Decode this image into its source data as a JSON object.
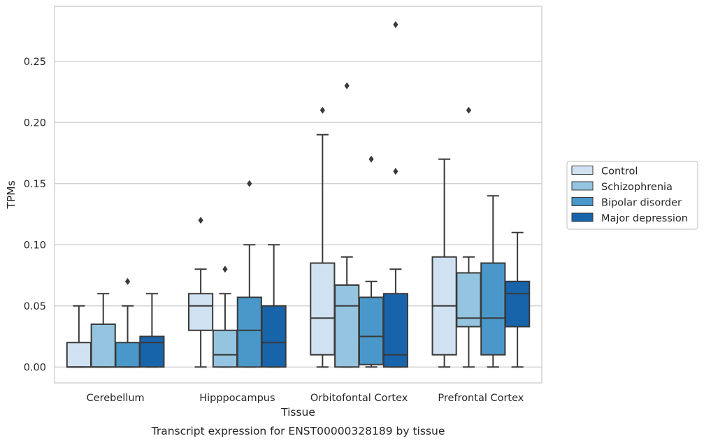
{
  "chart_data": {
    "type": "box",
    "xlabel": "Tissue",
    "ylabel": "TPMs",
    "caption": "Transcript expression for ENST00000328189 by tissue",
    "ylim": [
      -0.013,
      0.295
    ],
    "yticks": [
      0.0,
      0.05,
      0.1,
      0.15,
      0.2,
      0.25
    ],
    "ytick_labels": [
      "0.00",
      "0.05",
      "0.10",
      "0.15",
      "0.20",
      "0.25"
    ],
    "grid": "horizontal",
    "legend_position": "right",
    "categories": [
      "Cerebellum",
      "Hipppocampus",
      "Orbitofontal Cortex",
      "Prefrontal Cortex"
    ],
    "series": [
      {
        "name": "Control",
        "color": "#d0e1f2",
        "boxes": [
          {
            "whislo": 0.0,
            "q1": 0.0,
            "med": 0.0,
            "q3": 0.02,
            "whishi": 0.05,
            "fliers": []
          },
          {
            "whislo": 0.0,
            "q1": 0.03,
            "med": 0.05,
            "q3": 0.06,
            "whishi": 0.08,
            "fliers": [
              0.12
            ]
          },
          {
            "whislo": 0.0,
            "q1": 0.01,
            "med": 0.04,
            "q3": 0.085,
            "whishi": 0.19,
            "fliers": [
              0.21
            ]
          },
          {
            "whislo": 0.0,
            "q1": 0.01,
            "med": 0.05,
            "q3": 0.09,
            "whishi": 0.17,
            "fliers": []
          }
        ]
      },
      {
        "name": "Schizophrenia",
        "color": "#94c4df",
        "boxes": [
          {
            "whislo": 0.0,
            "q1": 0.0,
            "med": 0.0,
            "q3": 0.035,
            "whishi": 0.06,
            "fliers": []
          },
          {
            "whislo": 0.0,
            "q1": 0.0,
            "med": 0.01,
            "q3": 0.03,
            "whishi": 0.06,
            "fliers": [
              0.08
            ]
          },
          {
            "whislo": 0.0,
            "q1": 0.0,
            "med": 0.05,
            "q3": 0.067,
            "whishi": 0.09,
            "fliers": [
              0.23
            ]
          },
          {
            "whislo": 0.0,
            "q1": 0.033,
            "med": 0.04,
            "q3": 0.077,
            "whishi": 0.09,
            "fliers": [
              0.21
            ]
          }
        ]
      },
      {
        "name": "Bipolar disorder",
        "color": "#4a98c9",
        "boxes": [
          {
            "whislo": 0.0,
            "q1": 0.0,
            "med": 0.0,
            "q3": 0.02,
            "whishi": 0.05,
            "fliers": [
              0.07
            ]
          },
          {
            "whislo": 0.0,
            "q1": 0.0,
            "med": 0.03,
            "q3": 0.057,
            "whishi": 0.1,
            "fliers": [
              0.15
            ]
          },
          {
            "whislo": 0.0,
            "q1": 0.002,
            "med": 0.025,
            "q3": 0.057,
            "whishi": 0.07,
            "fliers": [
              0.17
            ]
          },
          {
            "whislo": 0.0,
            "q1": 0.01,
            "med": 0.04,
            "q3": 0.085,
            "whishi": 0.14,
            "fliers": []
          }
        ]
      },
      {
        "name": "Major depression",
        "color": "#1764ab",
        "boxes": [
          {
            "whislo": 0.0,
            "q1": 0.0,
            "med": 0.02,
            "q3": 0.025,
            "whishi": 0.06,
            "fliers": []
          },
          {
            "whislo": 0.0,
            "q1": 0.0,
            "med": 0.02,
            "q3": 0.05,
            "whishi": 0.1,
            "fliers": []
          },
          {
            "whislo": 0.0,
            "q1": 0.0,
            "med": 0.01,
            "q3": 0.06,
            "whishi": 0.08,
            "fliers": [
              0.16,
              0.28
            ]
          },
          {
            "whislo": 0.0,
            "q1": 0.033,
            "med": 0.06,
            "q3": 0.07,
            "whishi": 0.11,
            "fliers": []
          }
        ]
      }
    ]
  }
}
